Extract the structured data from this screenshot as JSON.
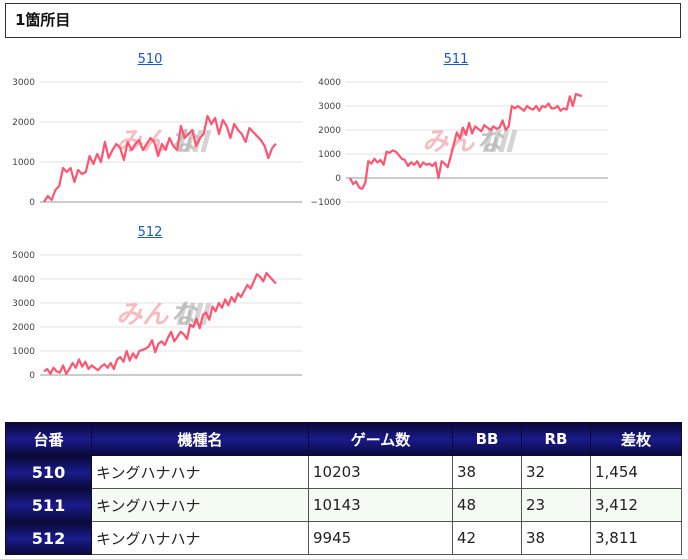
{
  "section": {
    "title": "1箇所目"
  },
  "charts": [
    {
      "id": "510",
      "title": "510",
      "chart_data": {
        "type": "line",
        "title": "510",
        "ylim": [
          0,
          3000
        ],
        "yticks": [
          0,
          1000,
          2000,
          3000
        ],
        "ytick_labels": [
          "0",
          "1000",
          "2000",
          "3000"
        ],
        "grid": true,
        "series": [
          {
            "color": "#ff5470",
            "values": [
              0,
              150,
              50,
              300,
              400,
              850,
              750,
              850,
              500,
              800,
              700,
              750,
              1150,
              950,
              1200,
              1000,
              1500,
              1100,
              1300,
              1450,
              1350,
              1050,
              1500,
              1300,
              1450,
              1550,
              1300,
              1450,
              1600,
              1500,
              1150,
              1450,
              1300,
              1600,
              1400,
              1300,
              1900,
              1600,
              1700,
              1800,
              1400,
              1600,
              1700,
              2150,
              1950,
              2100,
              1700,
              2050,
              1900,
              1600,
              1950,
              1800,
              1700,
              1500,
              1850,
              1750,
              1650,
              1550,
              1400,
              1100,
              1350,
              1454
            ]
          }
        ]
      },
      "watermark": {
        "left": "みん",
        "right": "な"
      }
    },
    {
      "id": "511",
      "title": "511",
      "chart_data": {
        "type": "line",
        "title": "511",
        "ylim": [
          -1000,
          4000
        ],
        "yticks": [
          -1000,
          0,
          1000,
          2000,
          3000,
          4000
        ],
        "ytick_labels": [
          "−1000",
          "0",
          "1000",
          "2000",
          "3000",
          "4000"
        ],
        "grid": true,
        "series": [
          {
            "color": "#ff5470",
            "values": [
              0,
              -250,
              -150,
              -400,
              -450,
              -200,
              700,
              600,
              800,
              650,
              750,
              550,
              1100,
              1050,
              1150,
              1100,
              950,
              800,
              750,
              500,
              650,
              550,
              700,
              450,
              650,
              550,
              600,
              500,
              650,
              0,
              700,
              600,
              450,
              900,
              1400,
              1900,
              1650,
              2100,
              1800,
              2300,
              1850,
              2150,
              2050,
              1950,
              2200,
              2100,
              2000,
              2150,
              2050,
              2100,
              2400,
              2000,
              2150,
              3000,
              2900,
              3000,
              2900,
              2800,
              3000,
              2900,
              2850,
              3000,
              2800,
              3000,
              2950,
              3100,
              2900,
              2900,
              3000,
              2800,
              2900,
              2850,
              3400,
              3000,
              3500,
              3450,
              3412
            ]
          }
        ]
      },
      "watermark": {
        "left": "みん",
        "right": "な"
      }
    },
    {
      "id": "512",
      "title": "512",
      "chart_data": {
        "type": "line",
        "title": "512",
        "ylim": [
          0,
          5000
        ],
        "yticks": [
          0,
          1000,
          2000,
          3000,
          4000,
          5000
        ],
        "ytick_labels": [
          "0",
          "1000",
          "2000",
          "3000",
          "4000",
          "5000"
        ],
        "grid": true,
        "series": [
          {
            "color": "#ff5470",
            "values": [
              150,
              250,
              50,
              300,
              150,
              100,
              400,
              50,
              250,
              500,
              300,
              650,
              350,
              550,
              250,
              400,
              300,
              200,
              350,
              450,
              300,
              500,
              250,
              650,
              750,
              550,
              1000,
              600,
              900,
              700,
              1000,
              1050,
              1100,
              1200,
              1450,
              950,
              1300,
              1400,
              1250,
              1550,
              1800,
              1400,
              1600,
              1800,
              1700,
              1500,
              2100,
              2000,
              2350,
              1950,
              2500,
              2600,
              2300,
              2850,
              2650,
              3000,
              2800,
              3150,
              2900,
              3250,
              3050,
              3400,
              3250,
              3500,
              3750,
              3600,
              3900,
              4200,
              4100,
              3900,
              4250,
              4100,
              3950,
              3811
            ]
          }
        ]
      },
      "watermark": {
        "left": "みん",
        "right": "な"
      }
    }
  ],
  "table": {
    "headers": [
      "台番",
      "機種名",
      "ゲーム数",
      "BB",
      "RB",
      "差枚"
    ],
    "rows": [
      {
        "no": "510",
        "name": "キングハナハナ",
        "games": "10203",
        "bb": "38",
        "rb": "32",
        "diff": "1,454"
      },
      {
        "no": "511",
        "name": "キングハナハナ",
        "games": "10143",
        "bb": "48",
        "rb": "23",
        "diff": "3,412"
      },
      {
        "no": "512",
        "name": "キングハナハナ",
        "games": "9945",
        "bb": "42",
        "rb": "38",
        "diff": "3,811"
      }
    ]
  }
}
